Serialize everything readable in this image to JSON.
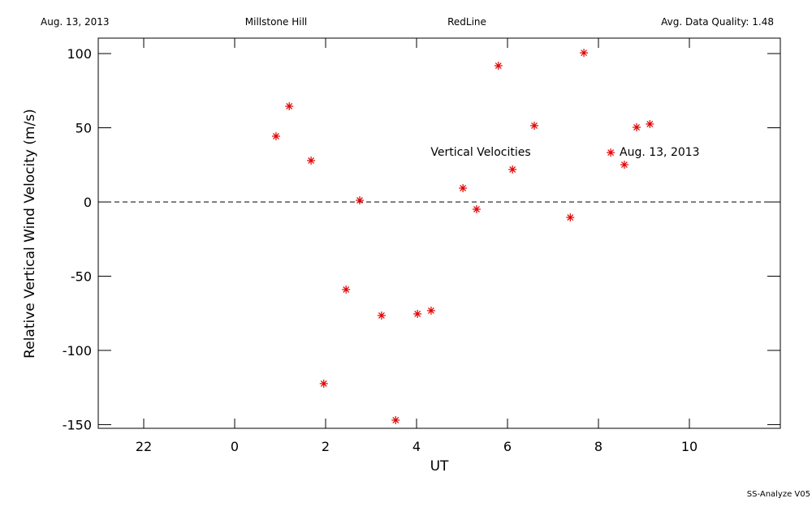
{
  "chart_data": {
    "type": "scatter",
    "header": [
      "Aug. 13, 2013",
      "Millstone Hill",
      "RedLine",
      "Avg. Data Quality: 1.48"
    ],
    "annotations": [
      "Vertical Velocities",
      "Aug. 13, 2013"
    ],
    "footer": "SS-Analyze V05",
    "x_label": "UT",
    "y_label": "Relative Vertical Wind Velocity (m/s)",
    "xlim": [
      -3,
      12
    ],
    "ylim": [
      -152.5,
      110.4
    ],
    "xticks": [
      {
        "value": -2,
        "label": "22"
      },
      0,
      2,
      4,
      6,
      8,
      10
    ],
    "yticks": [
      100,
      50,
      0,
      -50,
      -100,
      -150
    ],
    "hline": 0,
    "color": "#e00000",
    "x": [
      0.91,
      1.2,
      1.68,
      1.96,
      2.45,
      2.75,
      3.23,
      3.54,
      4.02,
      4.32,
      5.02,
      5.32,
      5.8,
      6.11,
      6.59,
      7.38,
      7.68,
      8.27,
      8.57,
      8.84,
      9.13
    ],
    "values": [
      44.3,
      64.5,
      27.9,
      -122.4,
      -59.0,
      1.1,
      -76.5,
      -147,
      -75.4,
      -73.2,
      9.3,
      -4.9,
      91.8,
      21.9,
      51.4,
      -10.4,
      100.5,
      33.3,
      25.1,
      50.3,
      52.5
    ]
  }
}
